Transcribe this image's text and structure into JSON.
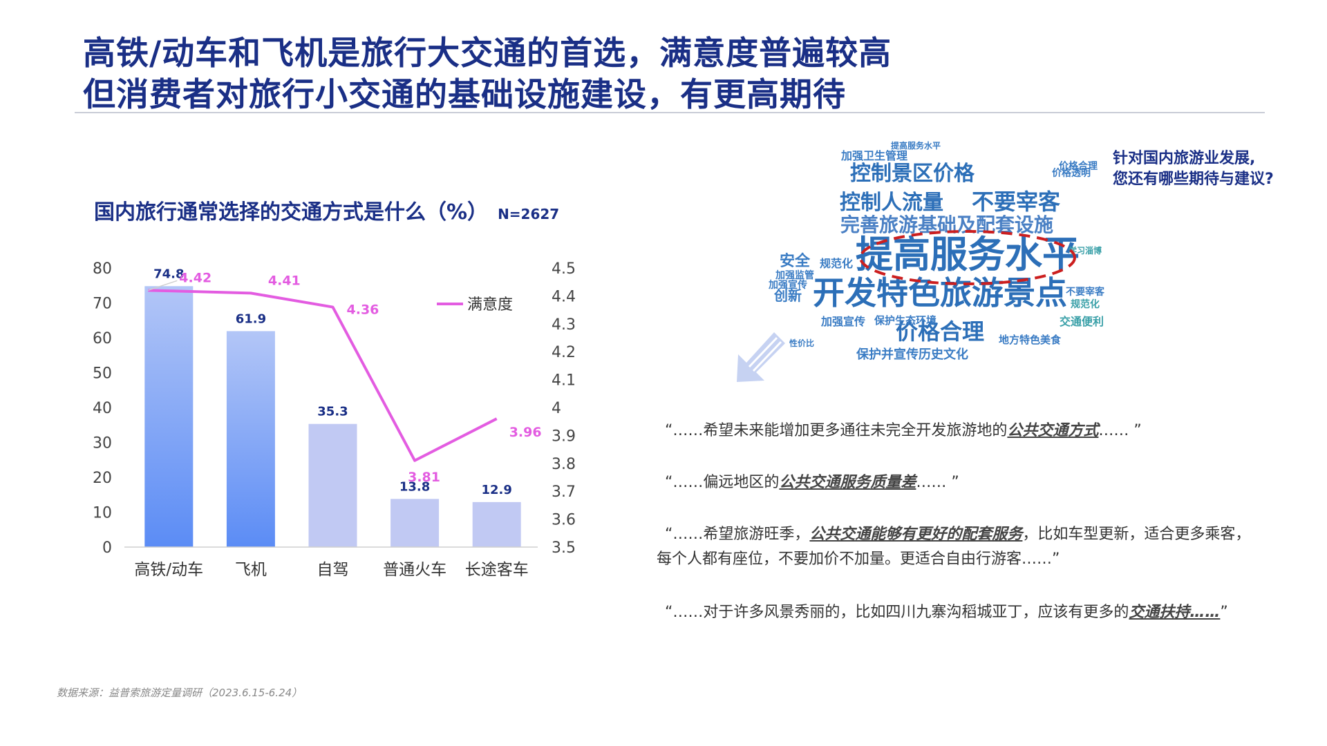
{
  "headline": {
    "line1": "高铁/动车和飞机是旅行大交通的首选，满意度普遍较高",
    "line2": "但消费者对旅行小交通的基础设施建设，有更高期待"
  },
  "chart_title": {
    "text": "国内旅行通常选择的交通方式是什么（%）",
    "sample": "N=2627"
  },
  "chart_data": {
    "type": "bar",
    "title": "国内旅行通常选择的交通方式是什么（%）",
    "categories": [
      "高铁/动车",
      "飞机",
      "自驾",
      "普通火车",
      "长途客车"
    ],
    "series": [
      {
        "values": [
          74.8,
          61.9,
          35.3,
          13.8,
          12.9
        ],
        "axis": "left",
        "kind": "bar"
      },
      {
        "name": "满意度",
        "values": [
          4.42,
          4.41,
          4.36,
          3.81,
          3.96
        ],
        "axis": "right",
        "kind": "line"
      }
    ],
    "value_labels": [
      "74.8",
      "61.9",
      "35.3",
      "13.8",
      "12.9"
    ],
    "line_labels": [
      "4.42",
      "4.41",
      "4.36",
      "3.81",
      "3.96"
    ],
    "ylim": [
      0,
      80
    ],
    "y_ticks": [
      "0",
      "10",
      "20",
      "30",
      "40",
      "50",
      "60",
      "70",
      "80"
    ],
    "y2lim": [
      3.5,
      4.5
    ],
    "y2_ticks": [
      "3.5",
      "3.6",
      "3.7",
      "3.8",
      "3.9",
      "4",
      "4.1",
      "4.2",
      "4.3",
      "4.4",
      "4.5"
    ],
    "legend": {
      "label": "满意度",
      "placement": "top-right"
    },
    "grid": false,
    "colors": {
      "bar_highlight_top": "#b3c6f7",
      "bar_highlight_bottom": "#5b8cf5",
      "bar_plain": "#c1c9f3",
      "line": "#e35ce1",
      "bar_label": "#1a2f86"
    }
  },
  "cloud": {
    "question_line1": "针对国内旅游业发展,",
    "question_line2": "您还有哪些期待与建议?",
    "words": [
      {
        "text": "提高服务水平",
        "weight": 5,
        "color": "#2c6fb8"
      },
      {
        "text": "开发特色旅游景点",
        "weight": 4.2,
        "color": "#2c6fb8"
      },
      {
        "text": "完善旅游基础及配套设施",
        "weight": 2.6,
        "color": "#4a80c4"
      },
      {
        "text": "控制景区价格",
        "weight": 2.9,
        "color": "#2c6fb8"
      },
      {
        "text": "控制人流量",
        "weight": 2.7,
        "color": "#2c6fb8"
      },
      {
        "text": "不要宰客",
        "weight": 3,
        "color": "#2c6fb8"
      },
      {
        "text": "价格合理",
        "weight": 3,
        "color": "#2c6fb8"
      },
      {
        "text": "安全",
        "weight": 2,
        "color": "#3a7cc4"
      },
      {
        "text": "规范化",
        "weight": 1.4,
        "color": "#3a7cc4"
      },
      {
        "text": "创新",
        "weight": 1.7,
        "color": "#3a7cc4"
      },
      {
        "text": "加强宣传",
        "weight": 1.4,
        "color": "#3a7cc4"
      },
      {
        "text": "保护生态环境",
        "weight": 1.2,
        "color": "#3a7cc4"
      },
      {
        "text": "保护并宣传历史文化",
        "weight": 1.4,
        "color": "#3a7cc4"
      },
      {
        "text": "交通便利",
        "weight": 1.3,
        "color": "#3aa0a8"
      },
      {
        "text": "加强卫生管理",
        "weight": 1.2,
        "color": "#3a7cc4"
      },
      {
        "text": "加强监管",
        "weight": 1.1,
        "color": "#3a7cc4"
      },
      {
        "text": "加强宣传",
        "weight": 1.1,
        "color": "#3a7cc4"
      },
      {
        "text": "地方特色美食",
        "weight": 1.1,
        "color": "#3a7cc4"
      },
      {
        "text": "价格透明",
        "weight": 0.9,
        "color": "#3a7cc4"
      },
      {
        "text": "性价比",
        "weight": 0.9,
        "color": "#3a7cc4"
      },
      {
        "text": "学习淄博",
        "weight": 0.8,
        "color": "#3aa0a8"
      },
      {
        "text": "不要宰客",
        "weight": 1.1,
        "color": "#3a7cc4"
      },
      {
        "text": "规范化",
        "weight": 1,
        "color": "#3aa0a8"
      },
      {
        "text": "价格合理",
        "weight": 1,
        "color": "#3a7cc4"
      },
      {
        "text": "提高服务水平",
        "weight": 0.9,
        "color": "#3a7cc4"
      }
    ]
  },
  "quotes": [
    {
      "segments": [
        {
          "t": "“……希望未来能增加更多通往未完全开发旅游地的",
          "hl": false
        },
        {
          "t": "公共交通方式",
          "hl": true
        },
        {
          "t": "…… ”",
          "hl": false
        }
      ]
    },
    {
      "segments": [
        {
          "t": "“……偏远地区的",
          "hl": false
        },
        {
          "t": "公共交通服务质量差",
          "hl": true
        },
        {
          "t": "…… ”",
          "hl": false
        }
      ]
    },
    {
      "segments": [
        {
          "t": "“……希望旅游旺季，",
          "hl": false
        },
        {
          "t": "公共交通能够有更好的配套服务",
          "hl": true
        },
        {
          "t": "，比如车型更新，适合更多乘客，",
          "hl": false
        }
      ],
      "continuation": "每个人都有座位，不要加价不加量。更适合自由行游客……”"
    },
    {
      "segments": [
        {
          "t": "“……对于许多风景秀丽的，比如四川九寨沟稻城亚丁，应该有更多的",
          "hl": false
        },
        {
          "t": "交通扶持……",
          "hl": true
        },
        {
          "t": "”",
          "hl": false
        }
      ]
    }
  ],
  "footnote": "数据来源：益普索旅游定量调研（2023.6.15-6.24）"
}
